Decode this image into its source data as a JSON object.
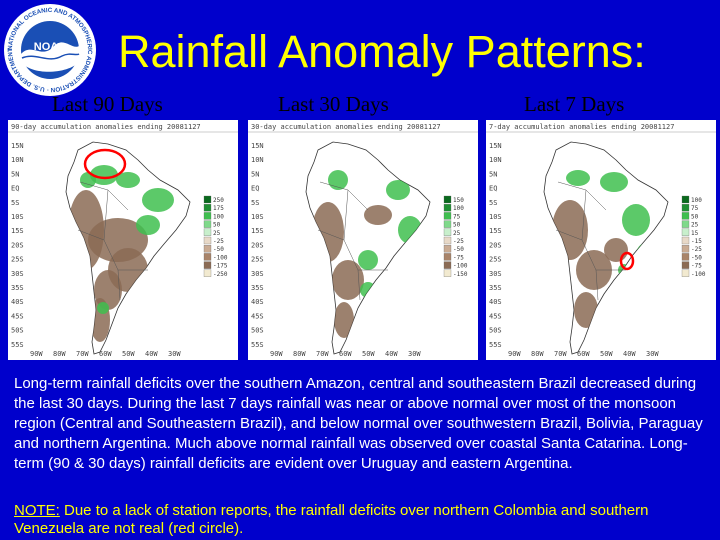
{
  "header": {
    "title": "Rainfall Anomaly Patterns:",
    "logo_text": "NATIONAL OCEANIC AND ATMOSPHERIC ADMINISTRATION · U.S. DEPARTMENT OF COMMERCE",
    "logo_center": "NOAA"
  },
  "panels": [
    {
      "heading": "Last 90 Days",
      "map_caption": "90-day accumulation anomalies ending 20081127",
      "legend": [
        "250",
        "175",
        "100",
        "50",
        "25",
        "-25",
        "-50",
        "-100",
        "-175",
        "-250"
      ],
      "highlight": "red circle over northern Colombia / southern Venezuela"
    },
    {
      "heading": "Last 30 Days",
      "map_caption": "30-day accumulation anomalies ending 20081127",
      "legend": [
        "150",
        "100",
        "75",
        "50",
        "25",
        "-25",
        "-50",
        "-75",
        "-100",
        "-150"
      ],
      "highlight": ""
    },
    {
      "heading": "Last 7 Days",
      "map_caption": "7-day accumulation anomalies ending 20081127",
      "legend": [
        "100",
        "75",
        "50",
        "25",
        "15",
        "-15",
        "-25",
        "-50",
        "-75",
        "-100"
      ],
      "highlight": "red circle over coastal Santa Catarina"
    }
  ],
  "lat_ticks": [
    "15N",
    "10N",
    "5N",
    "EQ",
    "5S",
    "10S",
    "15S",
    "20S",
    "25S",
    "30S",
    "35S",
    "40S",
    "45S",
    "50S",
    "55S"
  ],
  "lon_ticks": [
    "90W",
    "80W",
    "70W",
    "60W",
    "50W",
    "40W",
    "30W"
  ],
  "summary": "Long-term rainfall deficits over the southern Amazon, central and southeastern Brazil decreased during the last 30 days. During the last 7 days rainfall was near or above normal over most of the monsoon region (Central and Southeastern Brazil), and below normal over southwestern Brazil, Bolivia, Paraguay and northern Argentina. Much above normal rainfall was observed over coastal Santa Catarina. Long-term (90 & 30 days) rainfall deficits are evident over Uruguay and eastern Argentina.",
  "note": {
    "label": "NOTE:",
    "text": " Due to a lack of station reports, the rainfall deficits over northern Colombia and southern Venezuela are not real (red circle)."
  },
  "colors": {
    "background": "#0000cc",
    "title": "#ffff00",
    "note": "#ffff00",
    "body": "#ffffff",
    "deficit": "#8b6b55",
    "surplus": "#3fbf4f",
    "highlight": "#ff0000"
  }
}
